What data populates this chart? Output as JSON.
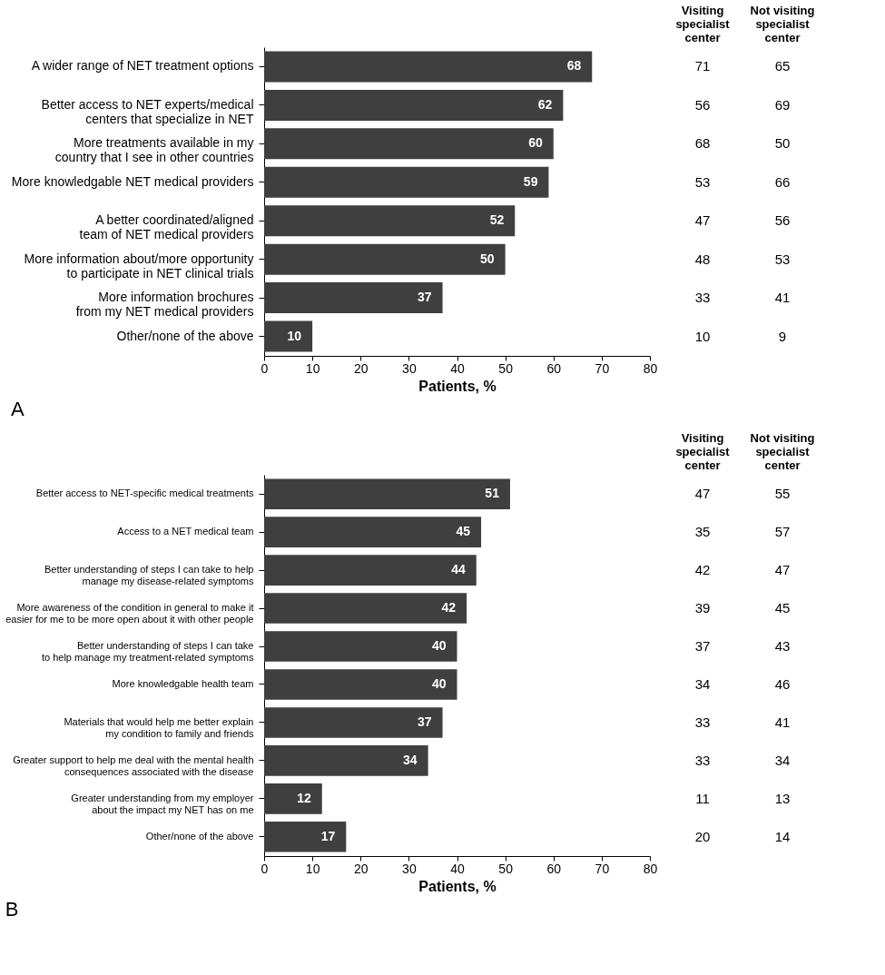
{
  "chart_data": [
    {
      "type": "bar",
      "orientation": "horizontal",
      "annotations": [
        "A"
      ],
      "xlabel": "Patients, %",
      "xlim": [
        0,
        80
      ],
      "xticks": [
        0,
        10,
        20,
        30,
        40,
        50,
        60,
        70,
        80
      ],
      "grid": false,
      "data_labels": true,
      "color": "#3f3f3f",
      "categories": [
        "A wider range of NET treatment options",
        "Better access to NET experts/medical\ncenters that specialize in NET",
        "More treatments available in my\ncountry that I see in other countries",
        "More knowledgable NET medical providers",
        "A better coordinated/aligned\nteam of NET medical providers",
        "More information about/more opportunity\nto participate in NET clinical trials",
        "More information brochures\nfrom my NET medical providers",
        "Other/none of the above"
      ],
      "values": [
        68,
        62,
        60,
        59,
        52,
        50,
        37,
        10
      ]
    },
    {
      "type": "heatmap",
      "categories": [
        "Visiting\nspecialist\ncenter",
        "Not visiting\nspecialist\ncenter"
      ],
      "y_categories": [
        null,
        null,
        null,
        null,
        null,
        null,
        null,
        null
      ],
      "cells": [
        [
          71,
          65
        ],
        [
          56,
          69
        ],
        [
          68,
          50
        ],
        [
          53,
          66
        ],
        [
          47,
          56
        ],
        [
          48,
          53
        ],
        [
          33,
          41
        ],
        [
          10,
          9
        ]
      ],
      "cell_labels": [
        [
          "71",
          "65"
        ],
        [
          "56",
          "69"
        ],
        [
          "68",
          "50"
        ],
        [
          "53",
          "66"
        ],
        [
          "47",
          "56"
        ],
        [
          "48",
          "53"
        ],
        [
          "33",
          "41"
        ],
        [
          "10",
          "9"
        ]
      ]
    },
    {
      "type": "bar",
      "orientation": "horizontal",
      "annotations": [
        "B"
      ],
      "xlabel": "Patients, %",
      "xlim": [
        0,
        80
      ],
      "xticks": [
        0,
        10,
        20,
        30,
        40,
        50,
        60,
        70,
        80
      ],
      "grid": false,
      "data_labels": true,
      "color": "#3f3f3f",
      "categories": [
        "Better access to NET-specific medical treatments",
        "Access to a NET medical team",
        "Better understanding of steps I can take to help\nmanage my disease-related symptoms",
        "More awareness of the condition in general to make it\neasier for me to be more open about it with other people",
        "Better understanding of steps I can take\nto help manage my treatment-related symptoms",
        "More knowledgable health team",
        "Materials that would help me better explain\nmy condition to family and friends",
        "Greater support to help me deal with the mental health\nconsequences associated with the disease",
        "Greater understanding from my employer\nabout the impact my NET has on me",
        "Other/none of the above"
      ],
      "values": [
        51,
        45,
        44,
        42,
        40,
        40,
        37,
        34,
        12,
        17
      ]
    },
    {
      "type": "heatmap",
      "categories": [
        "Visiting\nspecialist\ncenter",
        "Not visiting\nspecialist\ncenter"
      ],
      "y_categories": [
        null,
        null,
        null,
        null,
        null,
        null,
        null,
        null,
        null,
        null
      ],
      "cells": [
        [
          47,
          55
        ],
        [
          35,
          57
        ],
        [
          42,
          47
        ],
        [
          39,
          45
        ],
        [
          37,
          43
        ],
        [
          34,
          46
        ],
        [
          33,
          41
        ],
        [
          33,
          34
        ],
        [
          11,
          13
        ],
        [
          20,
          14
        ]
      ],
      "cell_labels": [
        [
          "47",
          "55"
        ],
        [
          "35",
          "57"
        ],
        [
          "42",
          "47"
        ],
        [
          "39",
          "45"
        ],
        [
          "37",
          "43"
        ],
        [
          "34",
          "46"
        ],
        [
          "33",
          "41"
        ],
        [
          "33",
          "34"
        ],
        [
          "11",
          "13"
        ],
        [
          "20",
          "14"
        ]
      ]
    }
  ]
}
